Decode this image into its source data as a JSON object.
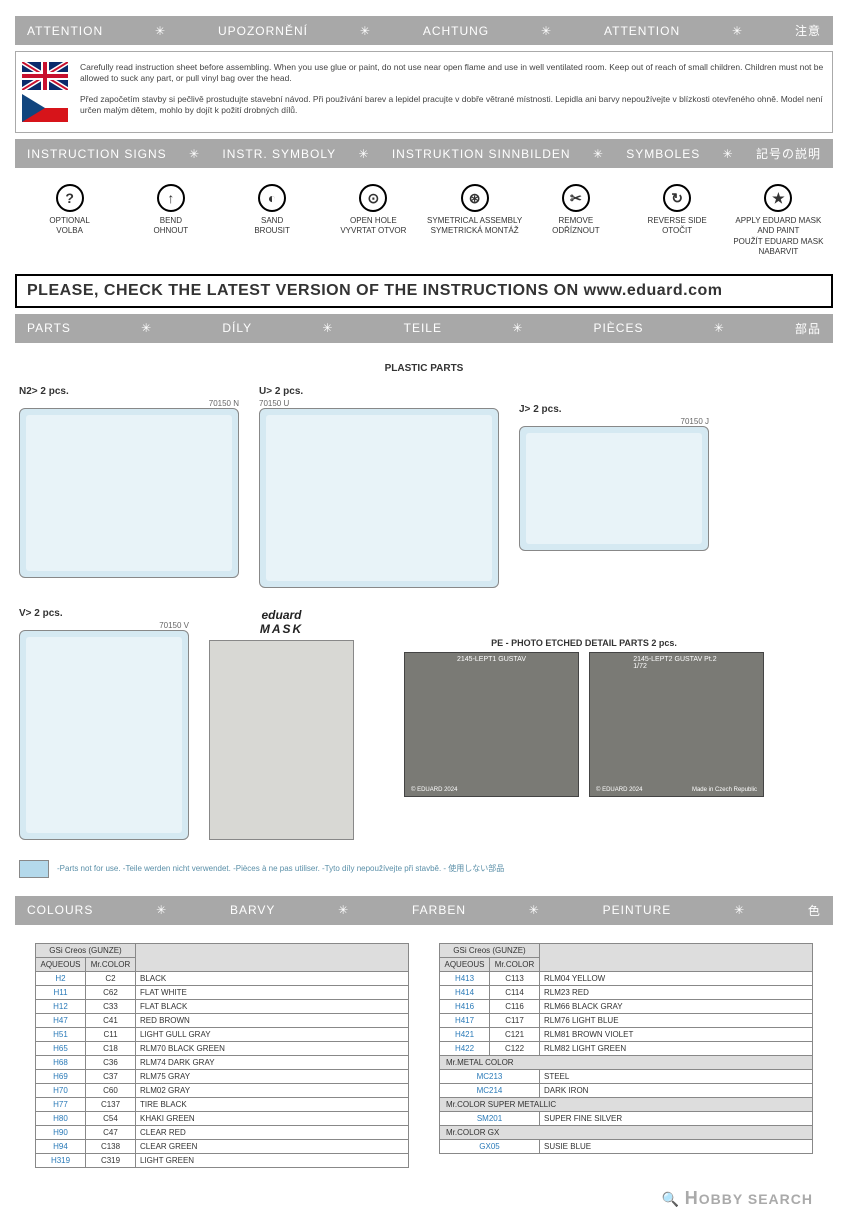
{
  "header_attention": [
    "ATTENTION",
    "UPOZORNĚNÍ",
    "ACHTUNG",
    "ATTENTION",
    "注意"
  ],
  "attention_texts": [
    "Carefully read instruction sheet before assembling. When you use glue or paint, do not use near open flame and use in well ventilated room. Keep out of reach of small children. Children must not be allowed to suck any part, or pull vinyl bag over the head.",
    "Před započetím stavby si pečlivě prostudujte stavební návod. Při používání barev a lepidel pracujte v dobře větrané místnosti. Lepidla ani barvy nepoužívejte v blízkosti otevřeného ohně. Model není určen malým dětem, mohlo by dojít k požití drobných dílů."
  ],
  "header_signs": [
    "INSTRUCTION SIGNS",
    "INSTR. SYMBOLY",
    "INSTRUKTION SINNBILDEN",
    "SYMBOLES",
    "記号の説明"
  ],
  "signs": [
    {
      "g": "?",
      "en": "OPTIONAL",
      "cz": "VOLBA"
    },
    {
      "g": "↑",
      "en": "BEND",
      "cz": "OHNOUT"
    },
    {
      "g": "◐",
      "en": "SAND",
      "cz": "BROUSIT"
    },
    {
      "g": "⊙",
      "en": "OPEN HOLE",
      "cz": "VYVRTAT OTVOR"
    },
    {
      "g": "⊛",
      "en": "SYMETRICAL ASSEMBLY",
      "cz": "SYMETRICKÁ MONTÁŽ"
    },
    {
      "g": "✂",
      "en": "REMOVE",
      "cz": "ODŘÍZNOUT"
    },
    {
      "g": "↻",
      "en": "REVERSE SIDE",
      "cz": "OTOČIT"
    },
    {
      "g": "★",
      "en": "APPLY EDUARD MASK AND PAINT",
      "cz": "POUŽÍT EDUARD MASK NABARVIT"
    }
  ],
  "banner": "PLEASE, CHECK THE LATEST VERSION OF THE INSTRUCTIONS ON www.eduard.com",
  "header_parts": [
    "PARTS",
    "DÍLY",
    "TEILE",
    "PIÈCES",
    "部品"
  ],
  "plastic_parts_title": "PLASTIC PARTS",
  "sprues": {
    "n": {
      "label": "N2>",
      "pcs": "2 pcs.",
      "code": "70150 N"
    },
    "u": {
      "label": "U>",
      "pcs": "2 pcs.",
      "code": "70150 U"
    },
    "j": {
      "label": "J>",
      "pcs": "2 pcs.",
      "code": "70150 J"
    },
    "v": {
      "label": "V>",
      "pcs": "2 pcs.",
      "code": "70150 V"
    }
  },
  "mask_label_brand": "eduard",
  "mask_label_word": "MASK",
  "pe_title": "PE - PHOTO ETCHED DETAIL PARTS  2 pcs.",
  "pe1_label": "2145-LEPT1 GUSTAV",
  "pe2_label": "2145-LEPT2 GUSTAV Pt.2  1/72",
  "pe_copyright": "© EDUARD 2024",
  "pe_made": "Made in Czech Republic",
  "parts_note": "-Parts not for use. -Teile werden nicht verwendet. -Pièces à ne pas utiliser. -Tyto díly nepoužívejte při stavbě. -  使用しない部品",
  "header_colours": [
    "COLOURS",
    "BARVY",
    "FARBEN",
    "PEINTURE",
    "色"
  ],
  "table_header_group": "GSi Creos (GUNZE)",
  "table_header_aq": "AQUEOUS",
  "table_header_mr": "Mr.COLOR",
  "table_header_metal": "Mr.METAL COLOR",
  "table_header_super": "Mr.COLOR SUPER METALLIC",
  "table_header_gx": "Mr.COLOR GX",
  "colors_left": [
    {
      "aq": "H2",
      "mr": "C2",
      "name": "BLACK"
    },
    {
      "aq": "H11",
      "mr": "C62",
      "name": "FLAT WHITE"
    },
    {
      "aq": "H12",
      "mr": "C33",
      "name": "FLAT BLACK"
    },
    {
      "aq": "H47",
      "mr": "C41",
      "name": "RED BROWN"
    },
    {
      "aq": "H51",
      "mr": "C11",
      "name": "LIGHT GULL GRAY"
    },
    {
      "aq": "H65",
      "mr": "C18",
      "name": "RLM70 BLACK GREEN"
    },
    {
      "aq": "H68",
      "mr": "C36",
      "name": "RLM74 DARK GRAY"
    },
    {
      "aq": "H69",
      "mr": "C37",
      "name": "RLM75  GRAY"
    },
    {
      "aq": "H70",
      "mr": "C60",
      "name": "RLM02 GRAY"
    },
    {
      "aq": "H77",
      "mr": "C137",
      "name": "TIRE BLACK"
    },
    {
      "aq": "H80",
      "mr": "C54",
      "name": "KHAKI GREEN"
    },
    {
      "aq": "H90",
      "mr": "C47",
      "name": "CLEAR RED"
    },
    {
      "aq": "H94",
      "mr": "C138",
      "name": "CLEAR GREEN"
    },
    {
      "aq": "H319",
      "mr": "C319",
      "name": "LIGHT GREEN"
    }
  ],
  "colors_right": [
    {
      "aq": "H413",
      "mr": "C113",
      "name": "RLM04 YELLOW"
    },
    {
      "aq": "H414",
      "mr": "C114",
      "name": "RLM23 RED"
    },
    {
      "aq": "H416",
      "mr": "C116",
      "name": "RLM66 BLACK GRAY"
    },
    {
      "aq": "H417",
      "mr": "C117",
      "name": "RLM76 LIGHT BLUE"
    },
    {
      "aq": "H421",
      "mr": "C121",
      "name": "RLM81 BROWN VIOLET"
    },
    {
      "aq": "H422",
      "mr": "C122",
      "name": "RLM82 LIGHT GREEN"
    }
  ],
  "colors_metal": [
    {
      "code": "MC213",
      "name": "STEEL"
    },
    {
      "code": "MC214",
      "name": "DARK IRON"
    }
  ],
  "colors_super": [
    {
      "code": "SM201",
      "name": "SUPER FINE SILVER"
    }
  ],
  "colors_gx": [
    {
      "code": "GX05",
      "name": "SUSIE BLUE"
    }
  ],
  "footer_logo": "HOBBY SEARCH"
}
